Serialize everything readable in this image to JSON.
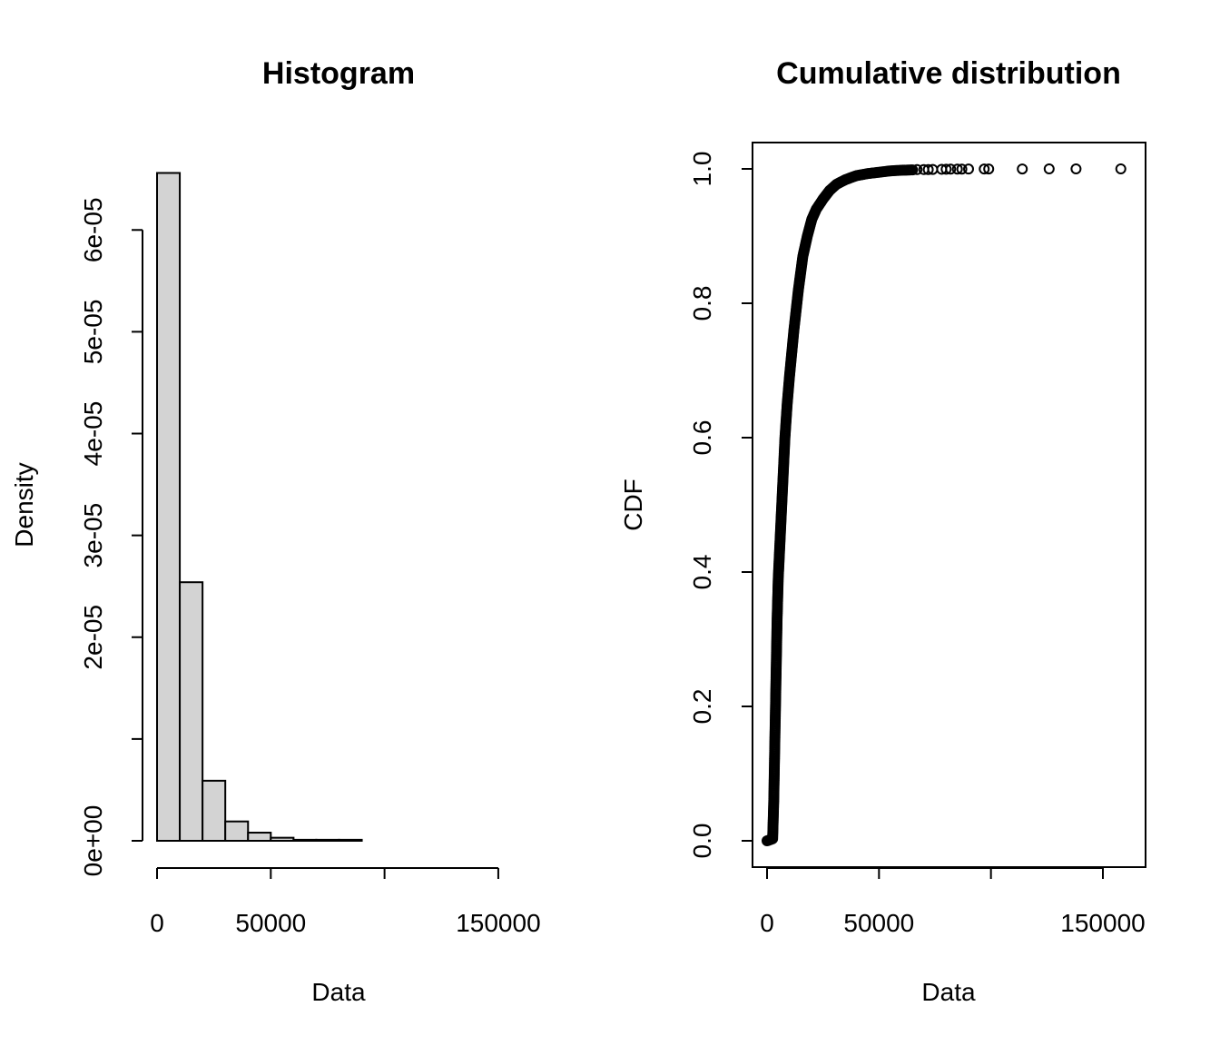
{
  "chart_data": [
    {
      "type": "bar",
      "title": "Histogram",
      "xlabel": "Data",
      "ylabel": "Density",
      "xlim": [
        0,
        160000
      ],
      "ylim": [
        0,
        6.6e-05
      ],
      "xticks": [
        0,
        50000,
        100000,
        150000
      ],
      "xtick_labels": [
        "0",
        "50000",
        "",
        "150000"
      ],
      "yticks": [
        0,
        1e-05,
        2e-05,
        3e-05,
        4e-05,
        5e-05,
        6e-05
      ],
      "ytick_labels": [
        "0e+00",
        "",
        "2e-05",
        "3e-05",
        "4e-05",
        "5e-05",
        "6e-05"
      ],
      "bins": [
        {
          "start": 0,
          "end": 10000,
          "density": 6.56e-05
        },
        {
          "start": 10000,
          "end": 20000,
          "density": 2.54e-05
        },
        {
          "start": 20000,
          "end": 30000,
          "density": 5.9e-06
        },
        {
          "start": 30000,
          "end": 40000,
          "density": 1.9e-06
        },
        {
          "start": 40000,
          "end": 50000,
          "density": 8e-07
        },
        {
          "start": 50000,
          "end": 60000,
          "density": 3e-07
        },
        {
          "start": 60000,
          "end": 70000,
          "density": 1e-07
        },
        {
          "start": 70000,
          "end": 80000,
          "density": 1e-07
        },
        {
          "start": 80000,
          "end": 90000,
          "density": 1e-07
        },
        {
          "start": 90000,
          "end": 100000,
          "density": 0
        },
        {
          "start": 100000,
          "end": 110000,
          "density": 0
        },
        {
          "start": 110000,
          "end": 120000,
          "density": 0
        },
        {
          "start": 120000,
          "end": 130000,
          "density": 0
        },
        {
          "start": 130000,
          "end": 140000,
          "density": 0
        },
        {
          "start": 140000,
          "end": 150000,
          "density": 0
        },
        {
          "start": 150000,
          "end": 160000,
          "density": 0
        }
      ]
    },
    {
      "type": "scatter",
      "title": "Cumulative distribution",
      "xlabel": "Data",
      "ylabel": "CDF",
      "xlim": [
        0,
        165000
      ],
      "ylim": [
        0,
        1
      ],
      "xticks": [
        0,
        50000,
        100000,
        150000
      ],
      "xtick_labels": [
        "0",
        "50000",
        "",
        "150000"
      ],
      "yticks": [
        0,
        0.2,
        0.4,
        0.6,
        0.8,
        1.0
      ],
      "ytick_labels": [
        "0.0",
        "0.2",
        "0.4",
        "0.6",
        "0.8",
        "1.0"
      ],
      "curve": [
        {
          "x": 0,
          "y": 0
        },
        {
          "x": 2500,
          "y": 0.003
        },
        {
          "x": 3000,
          "y": 0.06
        },
        {
          "x": 3500,
          "y": 0.15
        },
        {
          "x": 4000,
          "y": 0.24
        },
        {
          "x": 4500,
          "y": 0.33
        },
        {
          "x": 5000,
          "y": 0.39
        },
        {
          "x": 6000,
          "y": 0.46
        },
        {
          "x": 7000,
          "y": 0.53
        },
        {
          "x": 8000,
          "y": 0.6
        },
        {
          "x": 9000,
          "y": 0.65
        },
        {
          "x": 10000,
          "y": 0.69
        },
        {
          "x": 12000,
          "y": 0.76
        },
        {
          "x": 14000,
          "y": 0.82
        },
        {
          "x": 16000,
          "y": 0.87
        },
        {
          "x": 18000,
          "y": 0.9
        },
        {
          "x": 20000,
          "y": 0.925
        },
        {
          "x": 22000,
          "y": 0.94
        },
        {
          "x": 25000,
          "y": 0.955
        },
        {
          "x": 28000,
          "y": 0.968
        },
        {
          "x": 31000,
          "y": 0.977
        },
        {
          "x": 35000,
          "y": 0.984
        },
        {
          "x": 40000,
          "y": 0.99
        },
        {
          "x": 45000,
          "y": 0.993
        },
        {
          "x": 50000,
          "y": 0.995
        },
        {
          "x": 55000,
          "y": 0.997
        },
        {
          "x": 60000,
          "y": 0.998
        },
        {
          "x": 65000,
          "y": 0.9985
        }
      ],
      "outliers": [
        {
          "x": 67000,
          "y": 0.999
        },
        {
          "x": 70000,
          "y": 0.999
        },
        {
          "x": 72000,
          "y": 0.999
        },
        {
          "x": 74000,
          "y": 0.9992
        },
        {
          "x": 78000,
          "y": 0.9994
        },
        {
          "x": 80000,
          "y": 0.9995
        },
        {
          "x": 82000,
          "y": 0.9996
        },
        {
          "x": 85000,
          "y": 0.9997
        },
        {
          "x": 87000,
          "y": 0.9997
        },
        {
          "x": 90000,
          "y": 0.9998
        },
        {
          "x": 97000,
          "y": 0.9998
        },
        {
          "x": 99000,
          "y": 0.9999
        },
        {
          "x": 114000,
          "y": 0.9999
        },
        {
          "x": 126000,
          "y": 1.0
        },
        {
          "x": 138000,
          "y": 1.0
        },
        {
          "x": 158000,
          "y": 1.0
        }
      ]
    }
  ]
}
